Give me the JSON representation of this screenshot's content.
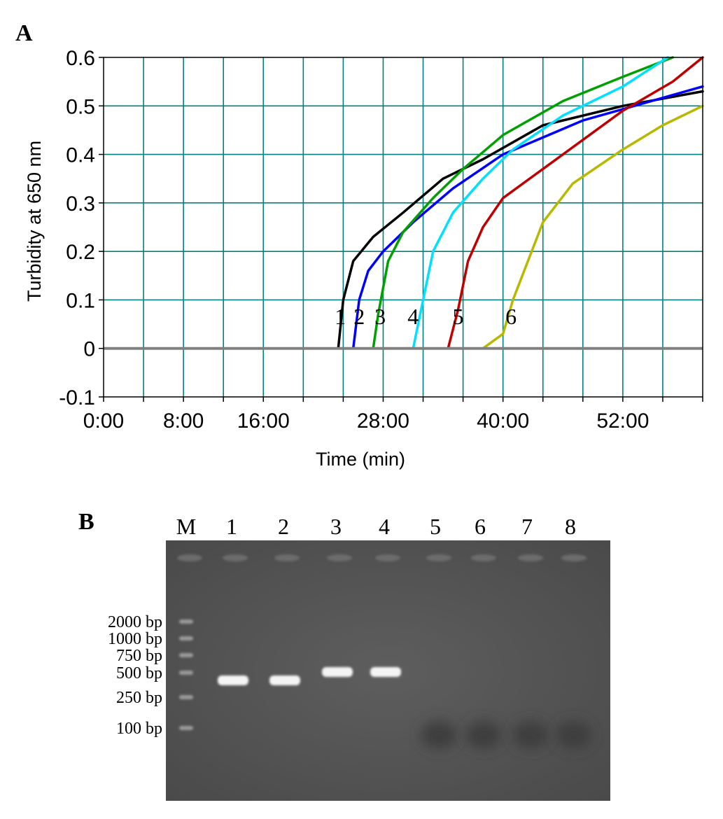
{
  "panel_a": {
    "label": "A"
  },
  "panel_b": {
    "label": "B",
    "lane_labels": [
      "M",
      "1",
      "2",
      "3",
      "4",
      "5",
      "6",
      "7",
      "8"
    ],
    "marker_labels": [
      "2000 bp",
      "1000 bp",
      "750 bp",
      "500 bp",
      "250 bp",
      "100 bp"
    ]
  },
  "colors": {
    "grid": "#008080",
    "baseline": "#808080",
    "gel_background": "#5a5a5a"
  },
  "chart_data": [
    {
      "type": "line",
      "panel": "A",
      "xlabel": "Time (min)",
      "ylabel": "Turbidity at 650 nm",
      "x_unit": "minutes",
      "xlim": [
        0,
        60
      ],
      "ylim": [
        -0.1,
        0.6
      ],
      "x_ticks": [
        0,
        4,
        8,
        12,
        16,
        20,
        24,
        28,
        32,
        36,
        40,
        44,
        48,
        52,
        56,
        60
      ],
      "x_tick_labels": [
        {
          "x": 0,
          "label": "0:00"
        },
        {
          "x": 8,
          "label": "8:00"
        },
        {
          "x": 16,
          "label": "16:00"
        },
        {
          "x": 28,
          "label": "28:00"
        },
        {
          "x": 40,
          "label": "40:00"
        },
        {
          "x": 52,
          "label": "52:00"
        }
      ],
      "y_ticks": [
        -0.1,
        0,
        0.1,
        0.2,
        0.3,
        0.4,
        0.5,
        0.6
      ],
      "y_tick_labels": [
        "-0.1",
        "0",
        "0.1",
        "0.2",
        "0.3",
        "0.4",
        "0.5",
        "0.6"
      ],
      "grid": true,
      "legend": "none",
      "series": [
        {
          "label": "1",
          "color": "#000000",
          "label_point": [
            23.7,
            0.05
          ],
          "points": [
            [
              10,
              0
            ],
            [
              23.5,
              0
            ],
            [
              24,
              0.1
            ],
            [
              25,
              0.18
            ],
            [
              27,
              0.23
            ],
            [
              30,
              0.28
            ],
            [
              34,
              0.35
            ],
            [
              38,
              0.39
            ],
            [
              44,
              0.46
            ],
            [
              52,
              0.5
            ],
            [
              60,
              0.53
            ]
          ]
        },
        {
          "label": "2",
          "color": "#0000ff",
          "label_point": [
            25.6,
            0.05
          ],
          "points": [
            [
              11,
              0
            ],
            [
              25,
              0
            ],
            [
              25.6,
              0.1
            ],
            [
              26.5,
              0.16
            ],
            [
              28,
              0.2
            ],
            [
              31,
              0.26
            ],
            [
              35,
              0.33
            ],
            [
              40,
              0.4
            ],
            [
              48,
              0.47
            ],
            [
              60,
              0.54
            ]
          ]
        },
        {
          "label": "3",
          "color": "#00a000",
          "label_point": [
            27.7,
            0.05
          ],
          "points": [
            [
              12,
              0
            ],
            [
              27,
              0
            ],
            [
              27.5,
              0.07
            ],
            [
              28.5,
              0.18
            ],
            [
              30,
              0.24
            ],
            [
              33,
              0.31
            ],
            [
              36,
              0.37
            ],
            [
              40,
              0.44
            ],
            [
              46,
              0.51
            ],
            [
              52,
              0.56
            ],
            [
              57,
              0.6
            ]
          ]
        },
        {
          "label": "4",
          "color": "#00e0ff",
          "label_point": [
            31,
            0.05
          ],
          "points": [
            [
              12.5,
              0
            ],
            [
              31,
              0
            ],
            [
              31.8,
              0.08
            ],
            [
              33,
              0.2
            ],
            [
              35,
              0.28
            ],
            [
              38,
              0.35
            ],
            [
              41,
              0.41
            ],
            [
              46,
              0.48
            ],
            [
              52,
              0.54
            ],
            [
              56.5,
              0.6
            ]
          ]
        },
        {
          "label": "5",
          "color": "#c00000",
          "label_point": [
            35.5,
            0.05
          ],
          "points": [
            [
              13.5,
              0
            ],
            [
              34.5,
              0
            ],
            [
              35.5,
              0.08
            ],
            [
              36.5,
              0.18
            ],
            [
              38,
              0.25
            ],
            [
              40,
              0.31
            ],
            [
              44,
              0.37
            ],
            [
              48,
              0.43
            ],
            [
              52,
              0.49
            ],
            [
              57,
              0.55
            ],
            [
              60,
              0.6
            ]
          ]
        },
        {
          "label": "6",
          "color": "#b8b800",
          "label_point": [
            40.8,
            0.05
          ],
          "points": [
            [
              10,
              0
            ],
            [
              38,
              0
            ],
            [
              40,
              0.03
            ],
            [
              41,
              0.1
            ],
            [
              42.5,
              0.18
            ],
            [
              44,
              0.26
            ],
            [
              47,
              0.34
            ],
            [
              52,
              0.41
            ],
            [
              56,
              0.46
            ],
            [
              60,
              0.5
            ]
          ]
        }
      ]
    },
    {
      "type": "table",
      "panel": "B",
      "description_of_values": "agarose gel lanes; band_bp is the apparent product size relative to the marker (null = no band)",
      "lanes": [
        {
          "lane": "M",
          "ladder_bp": [
            2000,
            1000,
            750,
            500,
            250,
            100
          ]
        },
        {
          "lane": "1",
          "band_bp": 450
        },
        {
          "lane": "2",
          "band_bp": 450
        },
        {
          "lane": "3",
          "band_bp": 500
        },
        {
          "lane": "4",
          "band_bp": 500
        },
        {
          "lane": "5",
          "band_bp": null
        },
        {
          "lane": "6",
          "band_bp": null
        },
        {
          "lane": "7",
          "band_bp": null
        },
        {
          "lane": "8",
          "band_bp": null
        }
      ]
    }
  ]
}
